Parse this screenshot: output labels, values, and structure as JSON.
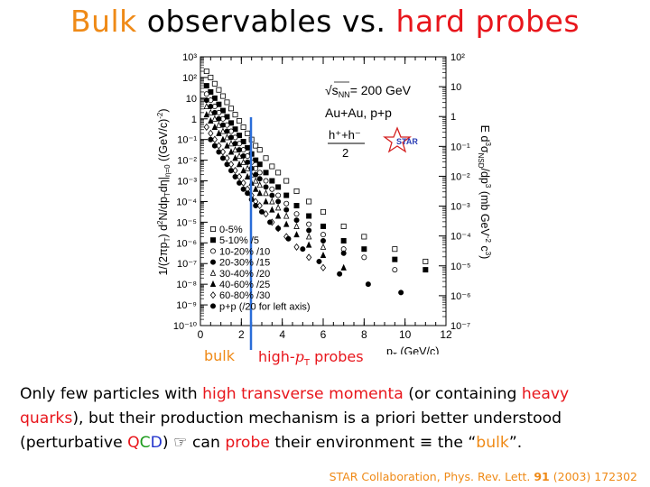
{
  "title": {
    "part1": "Bulk",
    "part2": " observables vs. ",
    "part3": "hard probes"
  },
  "figure": {
    "snn": "= 200 GeV",
    "snn_sym": "√s",
    "snn_sub": "NN",
    "system": "Au+Au, p+p",
    "ratio_num": "h⁺+h⁻",
    "ratio_den": "2",
    "star_logo": "STAR",
    "left_ylabel": "1/(2πp_T) d²N/dp_Tdη|η=0 ((GeV/c)⁻²)",
    "right_ylabel": "E d³σ_NSD/dp³ (mb GeV⁻² c³)",
    "xlabel": "p_T (GeV/c)"
  },
  "chart_data": {
    "type": "scatter",
    "xlim": [
      0,
      12
    ],
    "ylim_left_log10": [
      -10,
      3
    ],
    "ylim_right_log10": [
      -7,
      2
    ],
    "x_ticks": [
      "0",
      "2",
      "4",
      "6",
      "8",
      "10",
      "12"
    ],
    "left_ticks": [
      "10⁻¹⁰",
      "10⁻⁹",
      "10⁻⁸",
      "10⁻⁷",
      "10⁻⁶",
      "10⁻⁵",
      "10⁻⁴",
      "10⁻³",
      "10⁻²",
      "10⁻¹",
      "1",
      "10",
      "10²",
      "10³"
    ],
    "right_ticks": [
      "10⁻⁷",
      "10⁻⁶",
      "10⁻⁵",
      "10⁻⁴",
      "10⁻³",
      "10⁻²",
      "10⁻¹",
      "1",
      "10",
      "10²"
    ],
    "legend": [
      "0-5%",
      "5-10% /5",
      "10-20% /10",
      "20-30% /15",
      "30-40% /20",
      "40-60% /25",
      "60-80% /30",
      "p+p (/20 for left axis)"
    ],
    "vertical_line_x": 2.5,
    "series": [
      {
        "name": "0-5%",
        "marker": "open-square",
        "x": [
          0.3,
          0.5,
          0.7,
          0.9,
          1.1,
          1.3,
          1.5,
          1.7,
          1.9,
          2.1,
          2.3,
          2.5,
          2.7,
          2.9,
          3.2,
          3.5,
          3.8,
          4.2,
          4.7,
          5.3,
          6.0,
          7.0,
          8.0,
          9.5,
          11.0
        ],
        "y_log10": [
          2.3,
          2.0,
          1.7,
          1.4,
          1.1,
          0.8,
          0.5,
          0.2,
          -0.1,
          -0.4,
          -0.7,
          -1.0,
          -1.3,
          -1.5,
          -1.9,
          -2.3,
          -2.6,
          -3.0,
          -3.5,
          -4.0,
          -4.5,
          -5.2,
          -5.7,
          -6.3,
          -6.9
        ]
      },
      {
        "name": "5-10% /5",
        "marker": "filled-square",
        "x": [
          0.3,
          0.5,
          0.7,
          0.9,
          1.1,
          1.3,
          1.5,
          1.7,
          1.9,
          2.1,
          2.3,
          2.5,
          2.7,
          2.9,
          3.2,
          3.5,
          3.8,
          4.2,
          4.7,
          5.3,
          6.0,
          7.0,
          8.0,
          9.5,
          11.0
        ],
        "y_log10": [
          1.6,
          1.3,
          1.0,
          0.7,
          0.4,
          0.1,
          -0.2,
          -0.5,
          -0.8,
          -1.1,
          -1.4,
          -1.7,
          -2.0,
          -2.2,
          -2.6,
          -3.0,
          -3.3,
          -3.7,
          -4.2,
          -4.7,
          -5.2,
          -5.9,
          -6.3,
          -6.8,
          -7.3
        ]
      },
      {
        "name": "10-20% /10",
        "marker": "open-circle",
        "x": [
          0.3,
          0.5,
          0.7,
          0.9,
          1.1,
          1.3,
          1.5,
          1.7,
          1.9,
          2.1,
          2.3,
          2.5,
          2.7,
          2.9,
          3.2,
          3.5,
          3.8,
          4.2,
          4.7,
          5.3,
          6.0,
          7.0,
          8.0,
          9.5
        ],
        "y_log10": [
          1.2,
          0.9,
          0.6,
          0.3,
          0.0,
          -0.3,
          -0.6,
          -0.9,
          -1.2,
          -1.5,
          -1.8,
          -2.1,
          -2.4,
          -2.6,
          -3.0,
          -3.4,
          -3.7,
          -4.1,
          -4.6,
          -5.1,
          -5.6,
          -6.3,
          -6.7,
          -7.3
        ]
      },
      {
        "name": "20-30% /15",
        "marker": "filled-circle",
        "x": [
          0.3,
          0.5,
          0.7,
          0.9,
          1.1,
          1.3,
          1.5,
          1.7,
          1.9,
          2.1,
          2.3,
          2.5,
          2.7,
          2.9,
          3.2,
          3.5,
          3.8,
          4.2,
          4.7,
          5.3,
          6.0,
          7.0
        ],
        "y_log10": [
          0.9,
          0.6,
          0.3,
          0.0,
          -0.3,
          -0.6,
          -0.9,
          -1.2,
          -1.5,
          -1.8,
          -2.1,
          -2.4,
          -2.7,
          -2.9,
          -3.3,
          -3.7,
          -4.0,
          -4.4,
          -4.9,
          -5.4,
          -5.9,
          -6.5
        ]
      },
      {
        "name": "30-40% /20",
        "marker": "open-triangle",
        "x": [
          0.3,
          0.5,
          0.7,
          0.9,
          1.1,
          1.3,
          1.5,
          1.7,
          1.9,
          2.1,
          2.3,
          2.5,
          2.7,
          2.9,
          3.2,
          3.5,
          3.8,
          4.2,
          4.7,
          5.3,
          6.0
        ],
        "y_log10": [
          0.6,
          0.3,
          0.0,
          -0.3,
          -0.6,
          -0.9,
          -1.2,
          -1.5,
          -1.8,
          -2.1,
          -2.4,
          -2.7,
          -3.0,
          -3.2,
          -3.6,
          -4.0,
          -4.3,
          -4.7,
          -5.2,
          -5.7,
          -6.2
        ]
      },
      {
        "name": "40-60% /25",
        "marker": "filled-triangle",
        "x": [
          0.3,
          0.5,
          0.7,
          0.9,
          1.1,
          1.3,
          1.5,
          1.7,
          1.9,
          2.1,
          2.3,
          2.5,
          2.7,
          2.9,
          3.2,
          3.5,
          3.8,
          4.2,
          4.7,
          5.3,
          6.0,
          7.0
        ],
        "y_log10": [
          0.2,
          -0.1,
          -0.4,
          -0.7,
          -1.0,
          -1.3,
          -1.6,
          -1.9,
          -2.2,
          -2.5,
          -2.8,
          -3.1,
          -3.4,
          -3.6,
          -4.0,
          -4.4,
          -4.7,
          -5.1,
          -5.6,
          -6.1,
          -6.6,
          -7.2
        ]
      },
      {
        "name": "60-80% /30",
        "marker": "open-diamond",
        "x": [
          0.3,
          0.5,
          0.7,
          0.9,
          1.1,
          1.3,
          1.5,
          1.7,
          1.9,
          2.1,
          2.3,
          2.5,
          2.7,
          2.9,
          3.2,
          3.5,
          3.8,
          4.2,
          4.7,
          5.3,
          6.0
        ],
        "y_log10": [
          -0.4,
          -0.7,
          -1.0,
          -1.3,
          -1.6,
          -1.9,
          -2.2,
          -2.5,
          -2.8,
          -3.1,
          -3.4,
          -3.7,
          -4.0,
          -4.2,
          -4.6,
          -5.0,
          -5.3,
          -5.7,
          -6.2,
          -6.7,
          -7.2
        ]
      },
      {
        "name": "p+p (/20 for left axis)",
        "marker": "filled-circle",
        "x": [
          0.5,
          0.7,
          0.9,
          1.1,
          1.3,
          1.5,
          1.7,
          1.9,
          2.1,
          2.3,
          2.5,
          2.7,
          3.0,
          3.4,
          3.8,
          4.3,
          5.0,
          5.8,
          6.8,
          8.2,
          9.8
        ],
        "y_log10": [
          -1.0,
          -1.3,
          -1.6,
          -1.9,
          -2.2,
          -2.5,
          -2.8,
          -3.1,
          -3.4,
          -3.6,
          -3.9,
          -4.2,
          -4.5,
          -5.0,
          -5.3,
          -5.8,
          -6.3,
          -6.9,
          -7.5,
          -8.0,
          -8.4
        ]
      }
    ]
  },
  "labels": {
    "bulk": "bulk",
    "high": "high-",
    "pt": "p",
    "pt_sub": "T",
    "probes": " probes"
  },
  "body": {
    "s1": "Only few particles with ",
    "s2": "high transverse momenta",
    "s3": " (or containing ",
    "s4": "heavy",
    "s5": "quarks",
    "s6": "), but their production mechanism is a priori better understood",
    "s7": "(perturbative ",
    "q": "Q",
    "c": "C",
    "d": "D",
    "s8": ") ",
    "hand": "☞",
    "s9": " can ",
    "s10": "probe",
    "s11": " their environment ",
    "equiv": "≡",
    "s12": " the “",
    "s13": "bulk",
    "s14": "”."
  },
  "citation": {
    "pre": "STAR Collaboration, Phys. Rev. Lett. ",
    "vol": "91",
    "post": " (2003) 172302"
  },
  "colors": {
    "orange": "#ef8a17",
    "red": "#e8161c",
    "blue": "#2a6dd9"
  }
}
